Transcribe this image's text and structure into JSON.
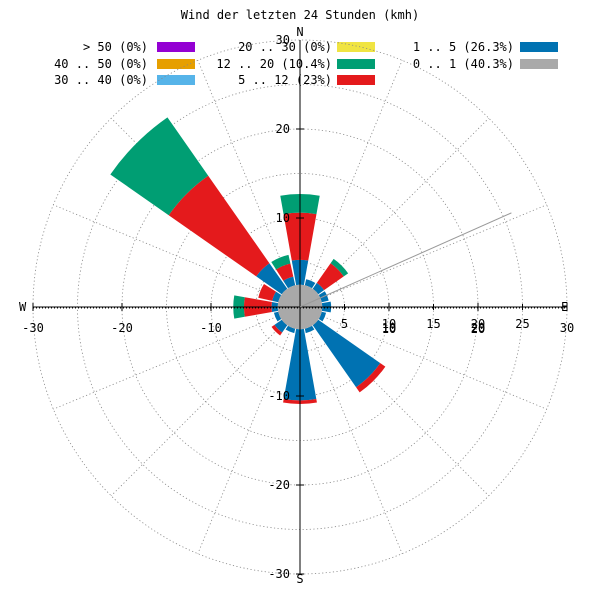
{
  "chart_data": {
    "type": "wind-rose",
    "title": "Wind der letzten 24 Stunden (kmh)",
    "compass": {
      "north": "N",
      "south": "S",
      "east": "E",
      "west": "W"
    },
    "legend": [
      {
        "label": "> 50 (0%)",
        "color": "#9400D3"
      },
      {
        "label": "20 .. 30 (0%)",
        "color": "#F0E442"
      },
      {
        "label": "1 .. 5 (26.3%)",
        "color": "#0072B2"
      },
      {
        "label": "40 .. 50 (0%)",
        "color": "#E69F00"
      },
      {
        "label": "12 .. 20 (10.4%)",
        "color": "#009E73"
      },
      {
        "label": "0 .. 1 (40.3%)",
        "color": "#A9A9A9"
      },
      {
        "label": "30 .. 40 (0%)",
        "color": "#56B4E9"
      },
      {
        "label": "5 .. 12 (23%)",
        "color": "#E41A1C"
      }
    ],
    "calm_radius": 2.5,
    "sector_width_deg": 22.5,
    "sectors": [
      {
        "direction": "N",
        "segments": [
          5.3,
          10.6,
          12.7
        ]
      },
      {
        "direction": "NNE",
        "segments": [
          3.2,
          3.2,
          3.2
        ]
      },
      {
        "direction": "NE",
        "segments": [
          3.3,
          6.0,
          6.6
        ]
      },
      {
        "direction": "ENE",
        "segments": [
          3.3,
          3.3,
          3.3
        ]
      },
      {
        "direction": "E",
        "segments": [
          3.5,
          3.5,
          3.5
        ]
      },
      {
        "direction": "ESE",
        "segments": [
          3.0,
          3.0,
          3.0
        ]
      },
      {
        "direction": "SE",
        "segments": [
          11.0,
          11.7,
          11.7
        ]
      },
      {
        "direction": "SSE",
        "segments": [
          3.0,
          3.0,
          3.0
        ]
      },
      {
        "direction": "S",
        "segments": [
          10.5,
          10.9,
          10.9
        ]
      },
      {
        "direction": "SSW",
        "segments": [
          3.0,
          3.0,
          3.0
        ]
      },
      {
        "direction": "SW",
        "segments": [
          3.5,
          3.9,
          3.9
        ]
      },
      {
        "direction": "WSW",
        "segments": [
          3.0,
          3.0,
          3.0
        ]
      },
      {
        "direction": "W",
        "segments": [
          3.2,
          6.3,
          7.5
        ]
      },
      {
        "direction": "WNW",
        "segments": [
          3.2,
          4.8,
          4.8
        ]
      },
      {
        "direction": "NW",
        "segments": [
          6.0,
          18.0,
          26.0
        ]
      },
      {
        "direction": "NNW",
        "segments": [
          3.5,
          5.0,
          6.0
        ]
      }
    ],
    "segment_colors": [
      "#0072B2",
      "#E41A1C",
      "#009E73"
    ],
    "calm_color": "#A9A9A9",
    "rings": [
      5,
      10,
      15,
      20,
      25,
      30
    ],
    "x_ticks_major": [
      -30,
      -20,
      -10,
      10,
      20,
      30
    ],
    "x_ticks_minor": [
      5,
      10,
      15,
      20,
      25
    ],
    "x_ticks_minor_labels": [
      "5",
      "10",
      "15",
      "20",
      "25"
    ],
    "x_ticks_minor_sub": [
      "10",
      "20"
    ],
    "y_ticks": [
      20,
      10,
      -10,
      -20,
      -30
    ],
    "y_tick_labels_pos": [
      "20",
      "10"
    ],
    "y_tick_labels_neg": [
      "-10",
      "-20",
      "-30"
    ],
    "y_tick_top": "30",
    "axis_range": [
      -30,
      30
    ],
    "reference_line_bearing_deg": 66,
    "grid": true
  }
}
